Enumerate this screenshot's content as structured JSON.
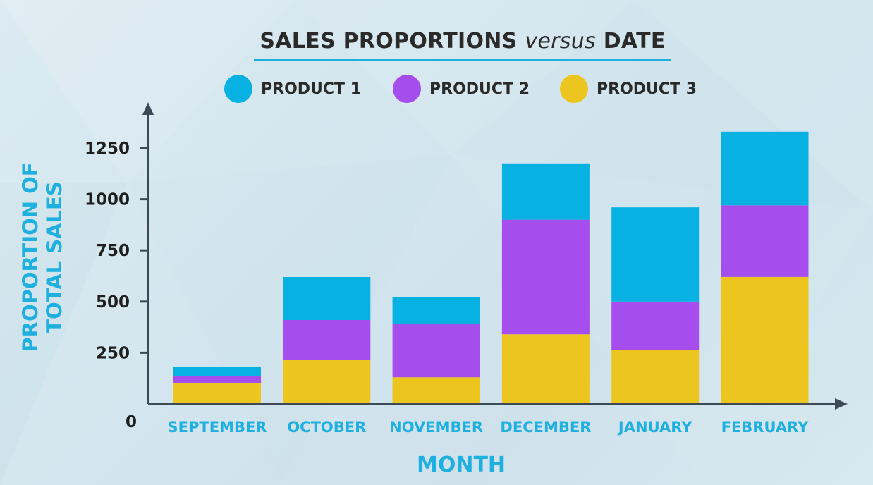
{
  "chart_data": {
    "type": "bar",
    "stacked": true,
    "title": {
      "part1": "SALES PROPORTIONS",
      "part2": "versus",
      "part3": "DATE"
    },
    "xlabel": "MONTH",
    "ylabel_line1": "PROPORTION OF",
    "ylabel_line2": "TOTAL SALES",
    "categories": [
      "SEPTEMBER",
      "OCTOBER",
      "NOVEMBER",
      "DECEMBER",
      "JANUARY",
      "FEBRUARY"
    ],
    "series": [
      {
        "name": "PRODUCT 3",
        "color": "#ecc51e",
        "values": [
          100,
          215,
          130,
          340,
          265,
          620
        ]
      },
      {
        "name": "PRODUCT 2",
        "color": "#a64ded",
        "values": [
          35,
          195,
          260,
          560,
          235,
          350
        ]
      },
      {
        "name": "PRODUCT 1",
        "color": "#07b1e2",
        "values": [
          45,
          210,
          130,
          275,
          460,
          360
        ]
      }
    ],
    "legend_order": [
      2,
      1,
      0
    ],
    "yticks": [
      0,
      250,
      500,
      750,
      1000,
      1250
    ],
    "ylim": [
      0,
      1250
    ],
    "grid": false,
    "legend_position": "top-center",
    "axis_color": "#3c4a57"
  }
}
